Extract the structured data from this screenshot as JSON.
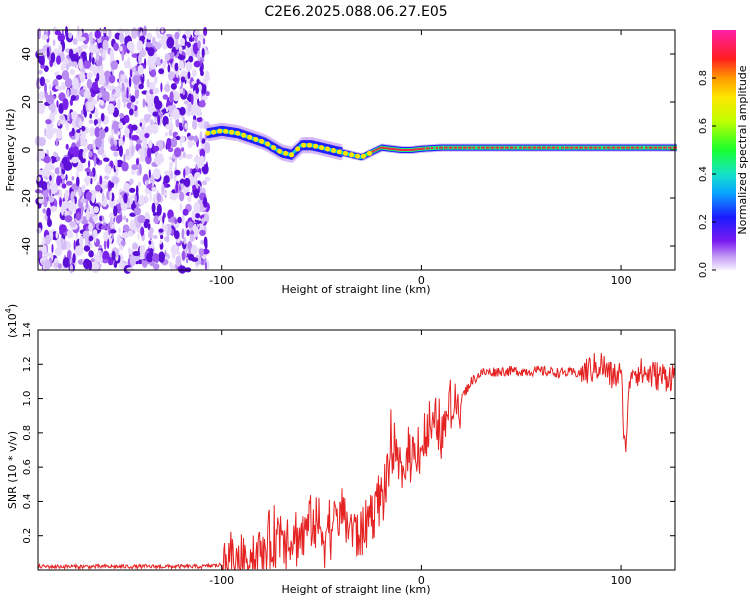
{
  "title": "C2E6.2025.088.06.27.E05",
  "chart_data": [
    {
      "type": "heatmap",
      "xlabel": "Height of straight line (km)",
      "ylabel": "Frequency (Hz)",
      "xlim": [
        -192,
        127
      ],
      "ylim": [
        -50,
        50
      ],
      "x_ticks": [
        -100,
        0,
        100
      ],
      "y_ticks": [
        -40,
        -20,
        0,
        20,
        40
      ],
      "noise_region_x": [
        -192,
        -107
      ],
      "signal_track": {
        "x": [
          -107,
          -100,
          -92,
          -85,
          -78,
          -70,
          -65,
          -60,
          -55,
          -50,
          -45,
          -40,
          -35,
          -30,
          -25,
          -20,
          -15,
          -10,
          -5,
          0,
          10,
          20,
          30,
          40,
          50,
          60,
          70,
          80,
          90,
          100,
          110,
          127
        ],
        "y": [
          7,
          8,
          7,
          5,
          3,
          -1,
          -2,
          2,
          2,
          1,
          0,
          -1,
          -2,
          -3,
          -1,
          1,
          0.5,
          0,
          0,
          0.5,
          1,
          1,
          1,
          1,
          1,
          1,
          1,
          1,
          1,
          1,
          1,
          1
        ]
      },
      "colorbar": {
        "label": "Normalized spectral amplitude",
        "ticks": [
          "0.0",
          "0.2",
          "0.4",
          "0.6",
          "0.8"
        ],
        "range": [
          0,
          1
        ]
      },
      "grid": false
    },
    {
      "type": "line",
      "xlabel": "Height of straight line (km)",
      "ylabel": "SNR (10 * v/v)",
      "scale_label": "(x10",
      "scale_exp": "4",
      "scale_close": ")",
      "xlim": [
        -192,
        127
      ],
      "ylim": [
        0,
        1.4
      ],
      "x_ticks": [
        -100,
        0,
        100
      ],
      "y_ticks": [
        0.2,
        0.4,
        0.6,
        0.8,
        1.0,
        1.2,
        1.4
      ],
      "series": [
        {
          "color": "#e52222",
          "x": [
            -192,
            -150,
            -110,
            -100,
            -90,
            -80,
            -75,
            -70,
            -65,
            -60,
            -55,
            -50,
            -45,
            -40,
            -35,
            -30,
            -25,
            -20,
            -17,
            -15,
            -12,
            -10,
            -5,
            0,
            5,
            10,
            15,
            20,
            25,
            30,
            40,
            50,
            60,
            70,
            80,
            85,
            90,
            95,
            100,
            102,
            105,
            110,
            115,
            120,
            127
          ],
          "y": [
            0.02,
            0.02,
            0.02,
            0.03,
            0.06,
            0.1,
            0.15,
            0.25,
            0.18,
            0.2,
            0.3,
            0.22,
            0.25,
            0.35,
            0.25,
            0.2,
            0.35,
            0.45,
            0.5,
            0.75,
            0.6,
            0.55,
            0.7,
            0.72,
            0.82,
            0.8,
            0.95,
            1.0,
            1.1,
            1.15,
            1.16,
            1.16,
            1.16,
            1.15,
            1.15,
            1.17,
            1.2,
            1.13,
            1.14,
            0.7,
            1.18,
            1.15,
            1.14,
            1.13,
            1.13
          ]
        }
      ],
      "grid": false
    }
  ]
}
